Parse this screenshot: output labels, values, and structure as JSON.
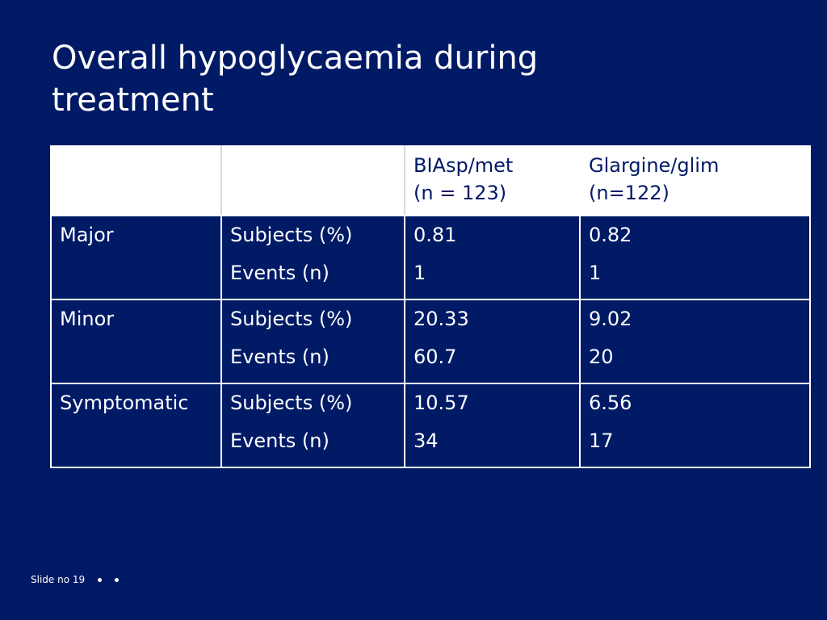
{
  "slide": {
    "title_line1": "Overall hypoglycaemia during",
    "title_line2": "treatment"
  },
  "table": {
    "headers": [
      "",
      "",
      "BIAsp/met\n(n = 123)",
      "Glargine/glim\n(n=122)"
    ],
    "header_lines": {
      "col3": [
        "BIAsp/met",
        "(n = 123)"
      ],
      "col4": [
        "Glargine/glim",
        "(n=122)"
      ]
    },
    "rows": [
      {
        "category": "Major",
        "measures": [
          "Subjects (%)",
          "Events (n)"
        ],
        "biasp_met": [
          "0.81",
          "1"
        ],
        "glargine_glim": [
          "0.82",
          "1"
        ]
      },
      {
        "category": "Minor",
        "measures": [
          "Subjects (%)",
          "Events (n)"
        ],
        "biasp_met": [
          "20.33",
          "60.7"
        ],
        "glargine_glim": [
          "9.02",
          "20"
        ]
      },
      {
        "category": "Symptomatic",
        "measures": [
          "Subjects (%)",
          "Events (n)"
        ],
        "biasp_met": [
          "10.57",
          "34"
        ],
        "glargine_glim": [
          "6.56",
          "17"
        ]
      }
    ]
  },
  "footer": {
    "slide_label": "Slide no 19"
  },
  "colors": {
    "background": "#001a66",
    "text": "#ffffff",
    "header_bg": "#ffffff"
  }
}
